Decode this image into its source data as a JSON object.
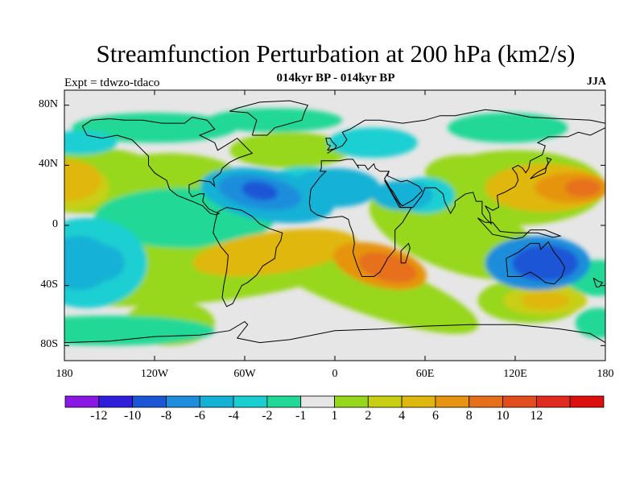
{
  "title": "Streamfunction Perturbation at 200 hPa (km2/s)",
  "subtitle": "014kyr BP - 014kyr BP",
  "expt_label": "Expt = tdwzo-tdaco",
  "season": "JJA",
  "lat_ticks": [
    "80N",
    "40N",
    "0",
    "40S",
    "80S"
  ],
  "lon_ticks": [
    "180",
    "120W",
    "60W",
    "0",
    "60E",
    "120E",
    "180"
  ],
  "colorbar": {
    "labels": [
      "-12",
      "-10",
      "-8",
      "-6",
      "-4",
      "-2",
      "-1",
      "1",
      "2",
      "4",
      "6",
      "8",
      "10",
      "12"
    ],
    "colors": [
      "#8b17e6",
      "#2f1edb",
      "#1a56d6",
      "#1e8ddb",
      "#12b1d6",
      "#1acfd2",
      "#22d896",
      "#e6e6e6",
      "#97d71a",
      "#c8cf12",
      "#e0b70e",
      "#e69411",
      "#e6701a",
      "#e34d1e",
      "#e02a1f",
      "#dd0e0e"
    ]
  },
  "chart_data": {
    "type": "heatmap",
    "variable": "Streamfunction perturbation at 200 hPa",
    "units": "km2/s",
    "x_range": [
      -180,
      180
    ],
    "y_range": [
      -90,
      90
    ],
    "levels": [
      -12,
      -10,
      -8,
      -6,
      -4,
      -2,
      -1,
      1,
      2,
      4,
      6,
      8,
      10,
      12
    ],
    "features": [
      {
        "name": "North Atlantic low",
        "lon": -50,
        "lat": 23,
        "value": -9
      },
      {
        "name": "Eastern Atlantic low",
        "lon": 0,
        "lat": 25,
        "value": -5
      },
      {
        "name": "Arabian low",
        "lon": 55,
        "lat": 20,
        "value": -4
      },
      {
        "name": "Southern Africa high",
        "lon": 35,
        "lat": -28,
        "value": 9
      },
      {
        "name": "South Atlantic high",
        "lon": -30,
        "lat": -18,
        "value": 5
      },
      {
        "name": "Northwest Pacific high",
        "lon": 160,
        "lat": 25,
        "value": 8
      },
      {
        "name": "Australian low",
        "lon": 135,
        "lat": -25,
        "value": -8
      },
      {
        "name": "South Pacific high",
        "lon": 140,
        "lat": -50,
        "value": 6
      },
      {
        "name": "Central Pacific high",
        "lon": -180,
        "lat": 30,
        "value": 6
      },
      {
        "name": "Southeast Pacific low",
        "lon": -165,
        "lat": -25,
        "value": -5
      }
    ]
  }
}
